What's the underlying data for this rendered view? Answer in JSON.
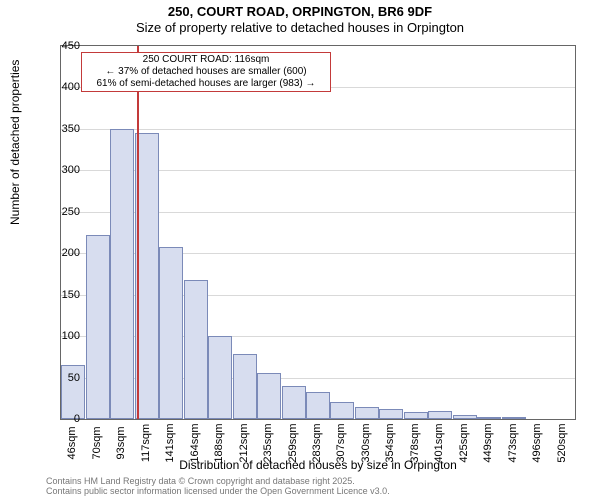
{
  "title_line1": "250, COURT ROAD, ORPINGTON, BR6 9DF",
  "title_line2": "Size of property relative to detached houses in Orpington",
  "ylabel": "Number of detached properties",
  "xlabel": "Distribution of detached houses by size in Orpington",
  "footer_line1": "Contains HM Land Registry data © Crown copyright and database right 2025.",
  "footer_line2": "Contains public sector information licensed under the Open Government Licence v3.0.",
  "chart": {
    "type": "histogram",
    "background_color": "#ffffff",
    "grid_color": "#d9d9d9",
    "axis_color": "#666666",
    "bar_fill": "#d7ddef",
    "bar_border": "#7b8ab8",
    "ylim": [
      0,
      450
    ],
    "ytick_step": 50,
    "xtick_labels": [
      "46sqm",
      "70sqm",
      "93sqm",
      "117sqm",
      "141sqm",
      "164sqm",
      "188sqm",
      "212sqm",
      "235sqm",
      "259sqm",
      "283sqm",
      "307sqm",
      "330sqm",
      "354sqm",
      "378sqm",
      "401sqm",
      "425sqm",
      "449sqm",
      "473sqm",
      "496sqm",
      "520sqm"
    ],
    "bars": [
      65,
      222,
      350,
      345,
      208,
      168,
      100,
      78,
      55,
      40,
      32,
      20,
      15,
      12,
      8,
      10,
      5,
      3,
      2,
      0,
      0
    ],
    "bar_width_ratio": 0.98,
    "label_fontsize": 12,
    "tick_fontsize": 11,
    "title_fontsize": 13
  },
  "marker": {
    "x_sqm": 116,
    "x_range": [
      46,
      520
    ],
    "color": "#c33a3a",
    "label_main": "250 COURT ROAD: 116sqm",
    "label_line1": "← 37% of detached houses are smaller (600)",
    "label_line2": "61% of semi-detached houses are larger (983) →",
    "box_border": "#c33a3a"
  }
}
